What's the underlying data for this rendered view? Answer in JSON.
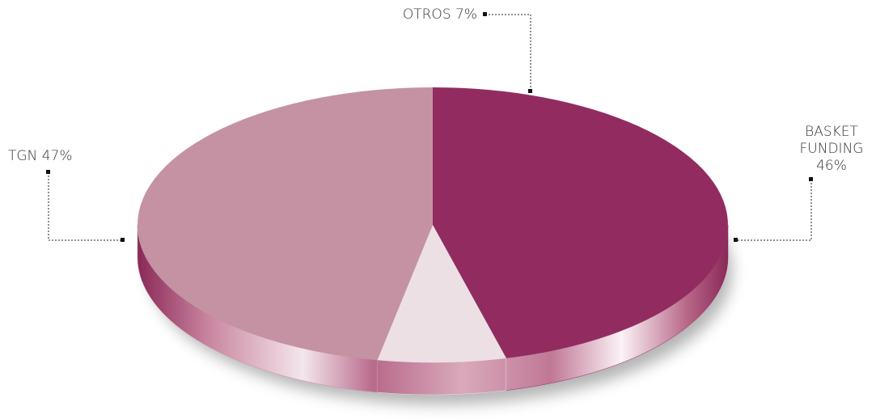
{
  "chart_data": {
    "type": "pie",
    "categories": [
      "BASKET FUNDING",
      "OTROS",
      "TGN"
    ],
    "values": [
      46,
      7,
      47
    ],
    "value_labels": [
      "46%",
      "7%",
      "47%"
    ],
    "colors": [
      "#922c60",
      "#ece0e5",
      "#c492a3"
    ]
  }
}
